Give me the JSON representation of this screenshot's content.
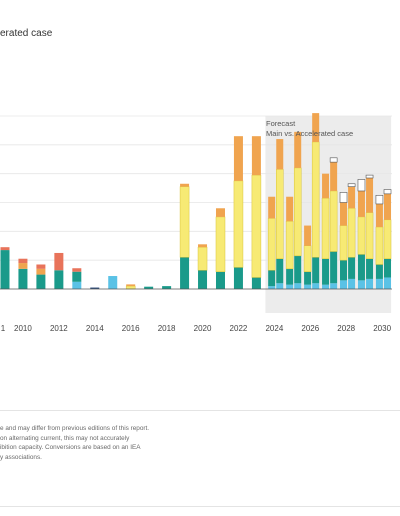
{
  "subtitle": "erated case",
  "forecast": {
    "line1": "Forecast",
    "line2": "Main vs. Accelerated case"
  },
  "colors": {
    "teal": "#1a9a8a",
    "sky": "#5ac2e6",
    "navy": "#2b4a7a",
    "yellow": "#f7ea74",
    "yellow_edge": "#d9c43a",
    "orange": "#f0a44f",
    "red": "#e8735a",
    "accelerated": "#ffffff",
    "forecast_band": "#ececec",
    "grid": "#e6e6e6",
    "baseline": "#555555"
  },
  "chart_data": {
    "type": "bar",
    "stacked": true,
    "title": "",
    "xlabel": "",
    "ylabel": "",
    "ylim": [
      0,
      6
    ],
    "grid": true,
    "x_tick_labels": [
      "2010",
      "2012",
      "2014",
      "2016",
      "2018",
      "2020",
      "2022",
      "2024",
      "2026",
      "2028",
      "2030"
    ],
    "forecast_region": {
      "from": 2023.5,
      "to": 2030.5
    },
    "series_colors": {
      "navy": "#2b4a7a",
      "sky": "#5ac2e6",
      "teal": "#1a9a8a",
      "yellow": "#f7ea74",
      "orange": "#f0a44f",
      "red": "#e8735a",
      "accelerated": "#ffffff"
    },
    "bars": [
      {
        "x": 2009,
        "stack": {
          "teal": 1.35,
          "red": 0.1
        }
      },
      {
        "x": 2010,
        "stack": {
          "teal": 0.7,
          "orange": 0.2,
          "red": 0.15
        }
      },
      {
        "x": 2011,
        "stack": {
          "teal": 0.5,
          "orange": 0.2,
          "red": 0.15
        }
      },
      {
        "x": 2012,
        "stack": {
          "teal": 0.65,
          "red": 0.6
        }
      },
      {
        "x": 2013,
        "stack": {
          "sky": 0.25,
          "teal": 0.35,
          "red": 0.12
        }
      },
      {
        "x": 2014,
        "stack": {
          "navy": 0.05
        }
      },
      {
        "x": 2015,
        "stack": {
          "sky": 0.45
        }
      },
      {
        "x": 2016,
        "stack": {
          "yellow": 0.1,
          "orange": 0.06
        }
      },
      {
        "x": 2017,
        "stack": {
          "teal": 0.08
        }
      },
      {
        "x": 2018,
        "stack": {
          "teal": 0.1
        }
      },
      {
        "x": 2019,
        "stack": {
          "teal": 1.1,
          "yellow": 2.45,
          "orange": 0.1
        }
      },
      {
        "x": 2020,
        "stack": {
          "teal": 0.65,
          "yellow": 0.8,
          "orange": 0.1
        }
      },
      {
        "x": 2021,
        "stack": {
          "teal": 0.6,
          "yellow": 1.9,
          "orange": 0.3
        }
      },
      {
        "x": 2022,
        "stack": {
          "teal": 0.75,
          "yellow": 3.0,
          "orange": 1.55
        }
      },
      {
        "x": 2023,
        "stack": {
          "teal": 0.4,
          "yellow": 3.55,
          "orange": 1.35
        }
      },
      {
        "x": 2023.85,
        "stack": {
          "sky": 0.1,
          "teal": 0.55,
          "yellow": 1.8,
          "orange": 0.75
        }
      },
      {
        "x": 2024.3,
        "stack": {
          "sky": 0.2,
          "teal": 0.85,
          "yellow": 3.1,
          "orange": 1.05
        }
      },
      {
        "x": 2024.85,
        "stack": {
          "sky": 0.15,
          "teal": 0.55,
          "yellow": 1.65,
          "orange": 0.85
        }
      },
      {
        "x": 2025.3,
        "stack": {
          "sky": 0.2,
          "teal": 0.95,
          "yellow": 3.05,
          "orange": 1.25
        }
      },
      {
        "x": 2025.85,
        "stack": {
          "sky": 0.15,
          "teal": 0.45,
          "yellow": 0.9,
          "orange": 0.7
        }
      },
      {
        "x": 2026.3,
        "stack": {
          "sky": 0.2,
          "teal": 0.9,
          "yellow": 4.0,
          "orange": 1.0
        }
      },
      {
        "x": 2026.85,
        "stack": {
          "sky": 0.15,
          "teal": 0.9,
          "yellow": 2.1,
          "orange": 0.85
        }
      },
      {
        "x": 2027.3,
        "stack": {
          "sky": 0.2,
          "teal": 1.1,
          "yellow": 2.1,
          "orange": 1.0,
          "accelerated": 0.15
        }
      },
      {
        "x": 2027.85,
        "stack": {
          "sky": 0.3,
          "teal": 0.7,
          "yellow": 1.2,
          "orange": 0.8,
          "accelerated": 0.35
        }
      },
      {
        "x": 2028.3,
        "stack": {
          "sky": 0.35,
          "teal": 0.75,
          "yellow": 1.7,
          "orange": 0.75,
          "accelerated": 0.1
        }
      },
      {
        "x": 2028.85,
        "stack": {
          "sky": 0.3,
          "teal": 0.9,
          "yellow": 1.3,
          "orange": 0.9,
          "accelerated": 0.4
        }
      },
      {
        "x": 2029.3,
        "stack": {
          "sky": 0.35,
          "teal": 0.7,
          "yellow": 1.6,
          "orange": 1.2,
          "accelerated": 0.1
        }
      },
      {
        "x": 2029.85,
        "stack": {
          "sky": 0.35,
          "teal": 0.5,
          "yellow": 1.3,
          "orange": 0.8,
          "accelerated": 0.3
        }
      },
      {
        "x": 2030.3,
        "stack": {
          "sky": 0.4,
          "teal": 0.65,
          "yellow": 1.35,
          "orange": 0.9,
          "accelerated": 0.15
        }
      }
    ]
  },
  "notes": [
    "e and may differ from previous editions of this report.",
    " on alternating current, this may not accurately",
    "ibition capacity. Conversions are based on an IEA",
    "y associations."
  ]
}
